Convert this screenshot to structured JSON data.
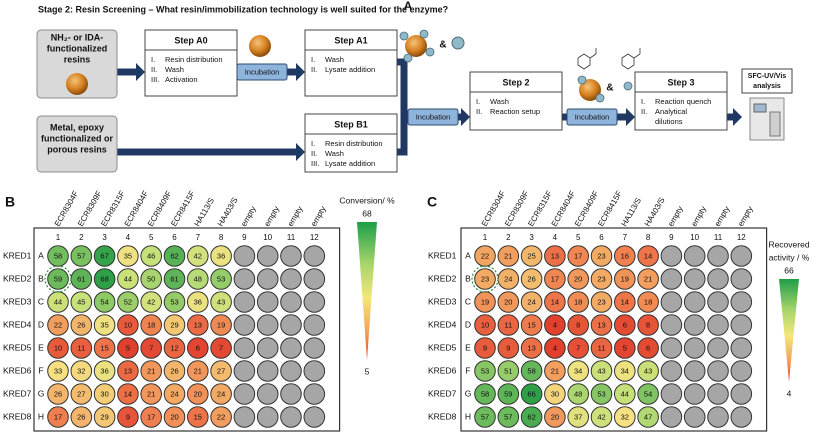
{
  "panel_a": {
    "label": "A",
    "title": "Stage 2: Resin Screening – What resin/immobilization technology is well suited for the enzyme?",
    "resin_box_1": [
      "NH₂- or IDA-",
      "functionalized",
      "resins"
    ],
    "resin_box_2": [
      "Metal, epoxy",
      "functionalized or",
      "porous resins"
    ],
    "steps": [
      {
        "title": "Step A0",
        "items": [
          [
            "I.",
            "Resin distribution"
          ],
          [
            "II.",
            "Wash"
          ],
          [
            "III.",
            "Activation"
          ]
        ]
      },
      {
        "title": "Step A1",
        "items": [
          [
            "I.",
            "Wash"
          ],
          [
            "II.",
            "Lysate addition"
          ]
        ]
      },
      {
        "title": "Step B1",
        "items": [
          [
            "I.",
            "Resin distribution"
          ],
          [
            "II.",
            "Wash"
          ],
          [
            "III.",
            "Lysate addition"
          ]
        ]
      },
      {
        "title": "Step 2",
        "items": [
          [
            "I.",
            "Wash"
          ],
          [
            "II.",
            "Reaction setup"
          ]
        ]
      },
      {
        "title": "Step 3",
        "items": [
          [
            "I.",
            "Reaction quench"
          ],
          [
            "II.",
            "Analytical"
          ],
          [
            "",
            "dilutions"
          ]
        ]
      }
    ],
    "incubation": [
      "Incubation",
      "Incubation",
      "Incubation"
    ],
    "ampersands": [
      "&",
      "&"
    ],
    "analysis": [
      "SFC-UV/Vis",
      "analysis"
    ]
  },
  "panel_b": {
    "label": "B",
    "columns": [
      1,
      2,
      3,
      4,
      5,
      6,
      7,
      8,
      9,
      10,
      11,
      12
    ],
    "resins": [
      "ECR8304F",
      "ECR8309F",
      "ECR8315F",
      "ECR8404F",
      "ECR8409F",
      "ECR8415F",
      "HA113/S",
      "HA403/S",
      "empty",
      "empty",
      "empty",
      "empty"
    ],
    "rows": [
      "A",
      "B",
      "C",
      "D",
      "E",
      "F",
      "G",
      "H"
    ],
    "enzymes": [
      "KRED1",
      "KRED2",
      "KRED3",
      "KRED4",
      "KRED5",
      "KRED6",
      "KRED7",
      "KRED8"
    ],
    "values": [
      [
        58,
        57,
        67,
        35,
        46,
        62,
        42,
        36
      ],
      [
        59,
        61,
        68,
        44,
        50,
        61,
        48,
        53
      ],
      [
        44,
        45,
        54,
        52,
        42,
        53,
        36,
        43
      ],
      [
        22,
        26,
        35,
        10,
        18,
        29,
        13,
        19
      ],
      [
        10,
        11,
        15,
        5,
        7,
        12,
        6,
        7
      ],
      [
        33,
        32,
        36,
        13,
        21,
        26,
        21,
        27
      ],
      [
        26,
        27,
        30,
        14,
        21,
        24,
        20,
        24
      ],
      [
        17,
        26,
        29,
        9,
        17,
        20,
        15,
        22
      ]
    ],
    "scale": {
      "title": [
        "Conversion/ %"
      ],
      "max": 68,
      "min": 5
    }
  },
  "panel_c": {
    "label": "C",
    "columns": [
      1,
      2,
      3,
      4,
      5,
      6,
      7,
      8,
      9,
      10,
      11,
      12
    ],
    "resins": [
      "ECR8304F",
      "ECR8309F",
      "ECR8315F",
      "ECR8404F",
      "ECR8409F",
      "ECR8415F",
      "HA113/S",
      "HA403/S",
      "empty",
      "empty",
      "empty",
      "empty"
    ],
    "rows": [
      "A",
      "B",
      "C",
      "D",
      "E",
      "F",
      "G",
      "H"
    ],
    "enzymes": [
      "KRED1",
      "KRED2",
      "KRED3",
      "KRED4",
      "KRED5",
      "KRED6",
      "KRED7",
      "KRED8"
    ],
    "values": [
      [
        22,
        21,
        25,
        13,
        17,
        23,
        16,
        14
      ],
      [
        23,
        24,
        26,
        17,
        20,
        23,
        19,
        21
      ],
      [
        19,
        20,
        24,
        14,
        18,
        23,
        14,
        18
      ],
      [
        10,
        11,
        15,
        4,
        8,
        13,
        6,
        8
      ],
      [
        9,
        9,
        13,
        4,
        7,
        11,
        5,
        6
      ],
      [
        53,
        51,
        58,
        21,
        34,
        43,
        34,
        43
      ],
      [
        58,
        59,
        66,
        30,
        48,
        53,
        44,
        54
      ],
      [
        57,
        57,
        62,
        20,
        37,
        42,
        32,
        47
      ]
    ],
    "scale": {
      "title": [
        "Recovered",
        "activity / %"
      ],
      "max": 66,
      "min": 4
    }
  }
}
